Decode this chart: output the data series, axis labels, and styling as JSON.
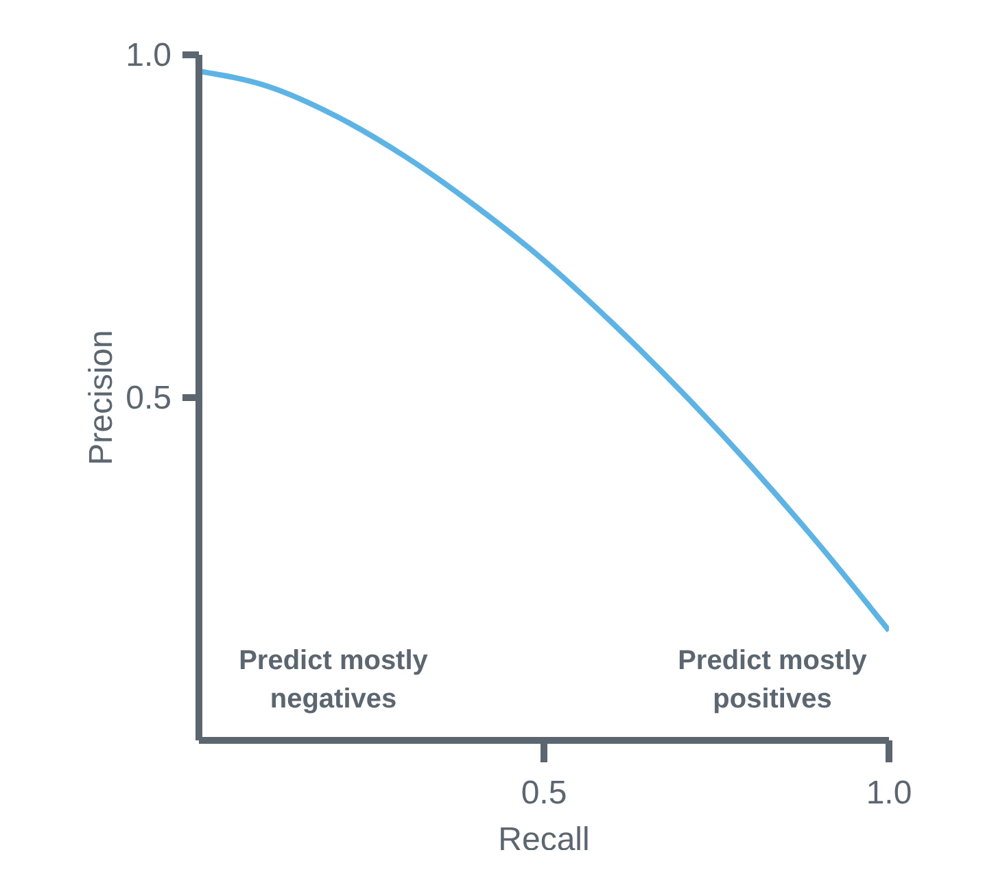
{
  "chart_data": {
    "type": "line",
    "xlabel": "Recall",
    "ylabel": "Precision",
    "x": [
      0,
      0.1,
      0.2,
      0.3,
      0.4,
      0.5,
      0.6,
      0.7,
      0.8,
      0.9,
      1.0
    ],
    "series": [
      {
        "color": "#5db4e4",
        "values": [
          0.976,
          0.954,
          0.91,
          0.851,
          0.78,
          0.7,
          0.608,
          0.508,
          0.4,
          0.284,
          0.16
        ]
      }
    ],
    "xlim": [
      0,
      1
    ],
    "ylim": [
      0,
      1
    ],
    "xticks": [
      0.5,
      {
        "value": 1,
        "label": "1.0"
      }
    ],
    "yticks": [
      0.5,
      {
        "value": 1,
        "label": "1.0"
      }
    ],
    "grid": false,
    "legend": false,
    "marker": "none",
    "line_style": "solid",
    "annotations": [
      "Predict mostly negatives",
      "Predict mostly positives"
    ]
  }
}
